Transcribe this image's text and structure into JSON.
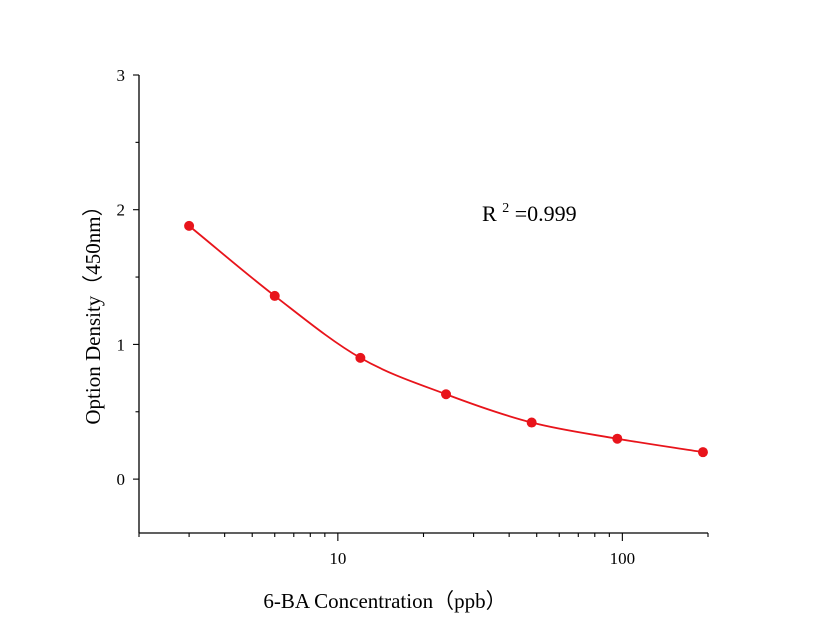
{
  "chart_data": {
    "type": "scatter",
    "title": "",
    "xlabel": "6-BA Concentration（ppb）",
    "ylabel": "Option Density（450nm）",
    "x_scale": "log",
    "xlim": [
      2,
      200
    ],
    "ylim": [
      -0.4,
      3
    ],
    "x_ticks": [
      {
        "value": 10,
        "label": "10"
      },
      {
        "value": 100,
        "label": "100"
      }
    ],
    "y_ticks": [
      {
        "value": 0,
        "label": "0"
      },
      {
        "value": 1,
        "label": "1"
      },
      {
        "value": 2,
        "label": "2"
      },
      {
        "value": 3,
        "label": "3"
      }
    ],
    "grid": false,
    "series": [
      {
        "x": [
          3,
          6,
          12,
          24,
          48,
          96,
          192
        ],
        "y": [
          1.88,
          1.36,
          0.9,
          0.63,
          0.42,
          0.3,
          0.2
        ],
        "color": "#e8141b",
        "fit_line": true
      }
    ],
    "annotation": {
      "prefix": "R",
      "superscript": "2",
      "suffix": "=0.999"
    }
  }
}
